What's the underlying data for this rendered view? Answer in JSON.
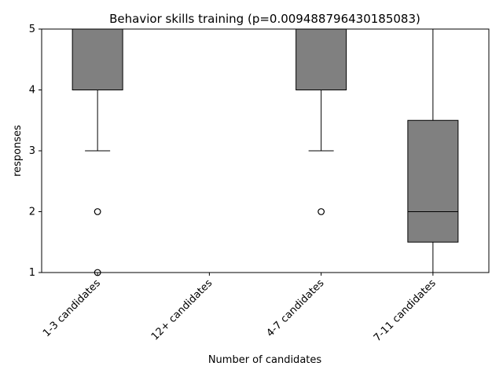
{
  "chart_data": {
    "type": "box",
    "title": "Behavior skills training (p=0.009488796430185083)",
    "xlabel": "Number of candidates",
    "ylabel": "responses",
    "ylim": [
      1,
      5
    ],
    "yticks": [
      "1",
      "2",
      "3",
      "4",
      "5"
    ],
    "grid": false,
    "categories": [
      "1-3 candidates",
      "12+ candidates",
      "4-7 candidates",
      "7-11 candidates"
    ],
    "boxes": [
      {
        "category": "1-3 candidates",
        "whisker_low": 3,
        "q1": 4,
        "median": 5,
        "q3": 5,
        "whisker_high": 5,
        "outliers": [
          2,
          1
        ]
      },
      {
        "category": "12+ candidates",
        "whisker_low": 5,
        "q1": 5,
        "median": 5,
        "q3": 5,
        "whisker_high": 5,
        "outliers": []
      },
      {
        "category": "4-7 candidates",
        "whisker_low": 3,
        "q1": 4,
        "median": 5,
        "q3": 5,
        "whisker_high": 5,
        "outliers": [
          2
        ]
      },
      {
        "category": "7-11 candidates",
        "whisker_low": 1,
        "q1": 1.5,
        "median": 2,
        "q3": 3.5,
        "whisker_high": 5,
        "outliers": []
      }
    ],
    "colors": {
      "box_fill": "#808080",
      "line": "#000000"
    }
  }
}
